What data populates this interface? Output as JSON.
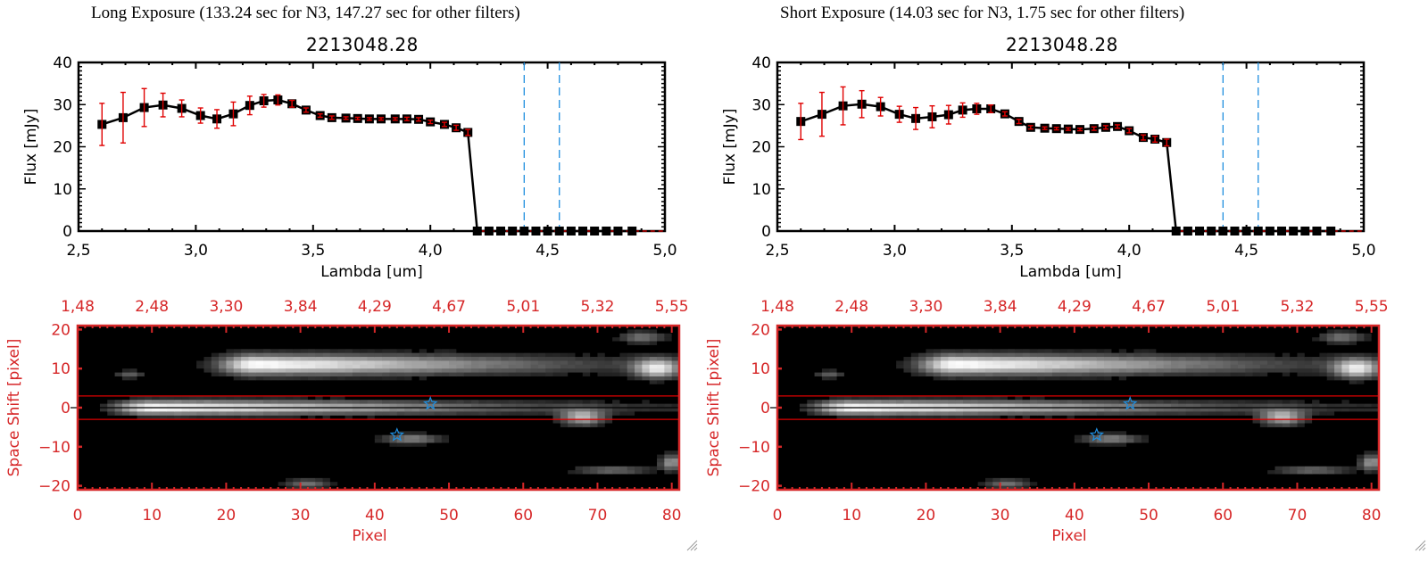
{
  "panels": [
    {
      "title": "Long Exposure (133.24 sec for N3, 147.27 sec for other filters)",
      "plot_title": "2213048.28"
    },
    {
      "title": "Short Exposure (14.03 sec for N3, 1.75 sec for other filters)",
      "plot_title": "2213048.28"
    }
  ],
  "colors": {
    "axis_red": "#d62728",
    "errorbar_red": "#e00000",
    "marker": "#000000",
    "band_blue": "#1f8fe0",
    "star_blue": "#1f8fe0",
    "aperture_red": "#e00000"
  },
  "chart_data": [
    {
      "type": "line",
      "title": "2213048.28",
      "xlabel": "Lambda [um]",
      "ylabel": "Flux [mJy]",
      "xlim": [
        2.5,
        5.0
      ],
      "ylim": [
        0,
        40
      ],
      "xticks": [
        "2.5",
        "3.0",
        "3.5",
        "4.0",
        "4.5",
        "5.0"
      ],
      "yticks": [
        "0",
        "10",
        "20",
        "30",
        "40"
      ],
      "vlines_dashed": [
        4.4,
        4.55
      ],
      "series": [
        {
          "name": "flux",
          "x": [
            2.6,
            2.69,
            2.78,
            2.86,
            2.94,
            3.02,
            3.09,
            3.16,
            3.23,
            3.29,
            3.35,
            3.41,
            3.47,
            3.53,
            3.58,
            3.64,
            3.69,
            3.74,
            3.79,
            3.85,
            3.9,
            3.95,
            4.0,
            4.06,
            4.11,
            4.16,
            4.2,
            4.25,
            4.3,
            4.35,
            4.4,
            4.45,
            4.5,
            4.55,
            4.6,
            4.65,
            4.7,
            4.75,
            4.8,
            4.86
          ],
          "y": [
            25.3,
            26.9,
            29.3,
            29.9,
            29.1,
            27.4,
            26.6,
            27.8,
            29.8,
            30.9,
            31.1,
            30.2,
            28.7,
            27.4,
            26.9,
            26.8,
            26.7,
            26.6,
            26.6,
            26.6,
            26.6,
            26.5,
            25.9,
            25.3,
            24.5,
            23.4,
            0,
            0,
            0,
            0,
            0,
            0,
            0,
            0,
            0,
            0,
            0,
            0,
            0,
            0
          ],
          "yerr": [
            5.0,
            6.0,
            4.5,
            2.8,
            2.0,
            1.8,
            2.2,
            2.8,
            2.2,
            1.5,
            1.2,
            0.8,
            0.5,
            0.4,
            0.4,
            0.3,
            0.3,
            0.3,
            0.3,
            0.3,
            0.4,
            0.4,
            0.4,
            0.5,
            0.6,
            0.7,
            0,
            0,
            0,
            0,
            0,
            0,
            0,
            0,
            0,
            0,
            0,
            0,
            0,
            0
          ]
        }
      ]
    },
    {
      "type": "line",
      "title": "2213048.28",
      "xlabel": "Lambda [um]",
      "ylabel": "Flux [mJy]",
      "xlim": [
        2.5,
        5.0
      ],
      "ylim": [
        0,
        40
      ],
      "xticks": [
        "2.5",
        "3.0",
        "3.5",
        "4.0",
        "4.5",
        "5.0"
      ],
      "yticks": [
        "0",
        "10",
        "20",
        "30",
        "40"
      ],
      "vlines_dashed": [
        4.4,
        4.55
      ],
      "series": [
        {
          "name": "flux",
          "x": [
            2.6,
            2.69,
            2.78,
            2.86,
            2.94,
            3.02,
            3.09,
            3.16,
            3.23,
            3.29,
            3.35,
            3.41,
            3.47,
            3.53,
            3.58,
            3.64,
            3.69,
            3.74,
            3.79,
            3.85,
            3.9,
            3.95,
            4.0,
            4.06,
            4.11,
            4.16,
            4.2,
            4.25,
            4.3,
            4.35,
            4.4,
            4.45,
            4.5,
            4.55,
            4.6,
            4.65,
            4.7,
            4.75,
            4.8,
            4.86
          ],
          "y": [
            26.0,
            27.7,
            29.7,
            30.1,
            29.5,
            27.7,
            26.7,
            27.1,
            27.6,
            28.7,
            29.0,
            29.0,
            27.8,
            26.0,
            24.6,
            24.4,
            24.3,
            24.2,
            24.1,
            24.3,
            24.6,
            24.8,
            23.8,
            22.2,
            21.8,
            21.0,
            0,
            0,
            0,
            0,
            0,
            0,
            0,
            0,
            0,
            0,
            0,
            0,
            0,
            0
          ],
          "yerr": [
            4.3,
            5.2,
            4.5,
            3.2,
            2.2,
            1.9,
            2.6,
            2.6,
            2.2,
            1.7,
            1.3,
            0.9,
            0.5,
            0.5,
            0.4,
            0.3,
            0.3,
            0.3,
            0.3,
            0.4,
            0.4,
            0.4,
            0.5,
            0.6,
            0.7,
            0.8,
            0,
            0,
            0,
            0,
            0,
            0,
            0,
            0,
            0,
            0,
            0,
            0,
            0,
            0
          ]
        }
      ]
    },
    {
      "type": "heatmap",
      "xlabel": "Pixel",
      "ylabel": "Space Shift [pixel]",
      "xlim": [
        0,
        81
      ],
      "ylim": [
        -21,
        21
      ],
      "xticks": [
        "0",
        "10",
        "20",
        "30",
        "40",
        "50",
        "60",
        "70",
        "80"
      ],
      "yticks": [
        "-20",
        "-10",
        "0",
        "10",
        "20"
      ],
      "top_xticks": [
        "1.48",
        "2.48",
        "3.30",
        "3.84",
        "4.29",
        "4.67",
        "5.01",
        "5.32",
        "5.55"
      ],
      "aperture_lines": [
        3,
        -3
      ],
      "center_line": 0,
      "stars": [
        {
          "x": 47.5,
          "y": 1
        },
        {
          "x": 43,
          "y": -7
        }
      ]
    },
    {
      "type": "heatmap",
      "xlabel": "Pixel",
      "ylabel": "Space Shift [pixel]",
      "xlim": [
        0,
        81
      ],
      "ylim": [
        -21,
        21
      ],
      "xticks": [
        "0",
        "10",
        "20",
        "30",
        "40",
        "50",
        "60",
        "70",
        "80"
      ],
      "yticks": [
        "-20",
        "-10",
        "0",
        "10",
        "20"
      ],
      "top_xticks": [
        "1.48",
        "2.48",
        "3.30",
        "3.84",
        "4.29",
        "4.67",
        "5.01",
        "5.32",
        "5.55"
      ],
      "aperture_lines": [
        3,
        -3
      ],
      "center_line": 0,
      "stars": [
        {
          "x": 47.5,
          "y": 1
        },
        {
          "x": 43,
          "y": -7
        }
      ]
    }
  ]
}
